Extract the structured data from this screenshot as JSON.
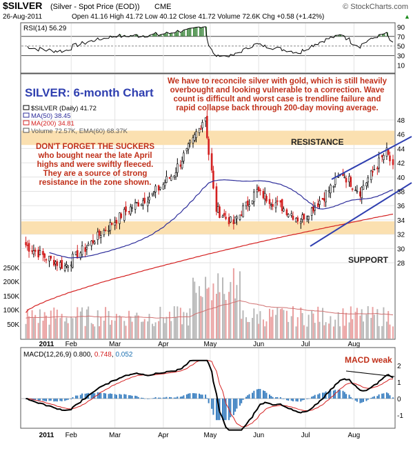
{
  "header": {
    "symbol": "$SILVER",
    "description": "(Silver - Spot Price (EOD))",
    "exchange": "CME",
    "watermark": "© StockCharts.com",
    "date": "26-Aug-2011",
    "ohlc": "Open 41.16  High 41.72  Low 40.12  Close 41.72  Volume 72.6K  Chg +0.58 (+1.42%)",
    "chg_arrow": "▲"
  },
  "rsi": {
    "label": "RSI(14) 56.29",
    "ticks": [
      "90",
      "70",
      "50",
      "30",
      "10"
    ],
    "levels": [
      70,
      30
    ]
  },
  "main": {
    "title": "SILVER: 6-month Chart",
    "legend": [
      {
        "text": "$SILVER (Daily) 41.72",
        "color": "#000000"
      },
      {
        "text": "MA(50) 38.45",
        "color": "#2d2d9a"
      },
      {
        "text": "MA(200) 34.81",
        "color": "#d42020"
      },
      {
        "text": "Volume 72.57K, EMA(60) 68.37K",
        "color": "#555555"
      }
    ],
    "note_top": [
      "We have to reconcile silver with gold, which is still heavily",
      "overbought and looking vulnerable to a correction. Wave",
      "count is difficult and worst case is trendline failure and",
      "rapid collapse back through 200-day moving average."
    ],
    "note_left": [
      "DON'T FORGET THE SUCKERS",
      "who bought near the late April",
      "highs and were swiftly fleeced.",
      "They are a source of strong",
      "resistance in the zone shown."
    ],
    "resistance_label": "RESISTANCE",
    "support_label": "SUPPORT",
    "price_ticks": [
      "48",
      "46",
      "44",
      "42",
      "40",
      "38",
      "36",
      "34",
      "32",
      "30",
      "28"
    ],
    "volume_ticks": [
      "250K",
      "200K",
      "150K",
      "100K",
      "50K"
    ]
  },
  "months": [
    "2011",
    "Feb",
    "Mar",
    "Apr",
    "May",
    "Jun",
    "Jul",
    "Aug"
  ],
  "macd": {
    "label_name": "MACD(12,26,9)",
    "label_v1": "0.800",
    "label_v2": "0.748",
    "label_v3": "0.052",
    "weak_label": "MACD weak",
    "ticks": [
      "2",
      "1",
      "0",
      "-1"
    ]
  },
  "colors": {
    "up": "#000000",
    "down": "#d42020",
    "ma50": "#2d2d9a",
    "ma200": "#d42020",
    "zone": "#fbe0b0",
    "title": "#2f3fb0",
    "note": "#c0301a",
    "rsi_fill": "#2f7f2f"
  },
  "chart_data": {
    "type": "candlestick",
    "title": "SILVER: 6-month Chart",
    "x_range": [
      "2011-01-01",
      "2011-08-26"
    ],
    "last_close": 41.72,
    "price_ylim": [
      27,
      50
    ],
    "zones": [
      {
        "name": "RESISTANCE",
        "low": 44.5,
        "high": 46.5
      },
      {
        "name": "SUPPORT",
        "low": 32,
        "high": 33.8
      }
    ],
    "price_series": [
      {
        "date": "2011-01-03",
        "close": 30.5
      },
      {
        "date": "2011-01-14",
        "close": 29.0
      },
      {
        "date": "2011-01-28",
        "close": 27.5
      },
      {
        "date": "2011-02-10",
        "close": 30.0
      },
      {
        "date": "2011-02-25",
        "close": 33.0
      },
      {
        "date": "2011-03-10",
        "close": 35.5
      },
      {
        "date": "2011-03-25",
        "close": 37.5
      },
      {
        "date": "2011-04-08",
        "close": 40.5
      },
      {
        "date": "2011-04-20",
        "close": 45.0
      },
      {
        "date": "2011-04-28",
        "close": 48.5
      },
      {
        "date": "2011-05-05",
        "close": 35.5
      },
      {
        "date": "2011-05-16",
        "close": 33.5
      },
      {
        "date": "2011-05-31",
        "close": 38.0
      },
      {
        "date": "2011-06-15",
        "close": 36.0
      },
      {
        "date": "2011-06-28",
        "close": 34.0
      },
      {
        "date": "2011-07-12",
        "close": 37.0
      },
      {
        "date": "2011-07-25",
        "close": 40.5
      },
      {
        "date": "2011-08-05",
        "close": 38.0
      },
      {
        "date": "2011-08-22",
        "close": 43.5
      },
      {
        "date": "2011-08-26",
        "close": 41.72
      }
    ],
    "ma50_last": 38.45,
    "ma200_last": 34.81,
    "rsi_last": 56.29,
    "macd_last": {
      "macd": 0.8,
      "signal": 0.748,
      "histogram": 0.052
    }
  }
}
